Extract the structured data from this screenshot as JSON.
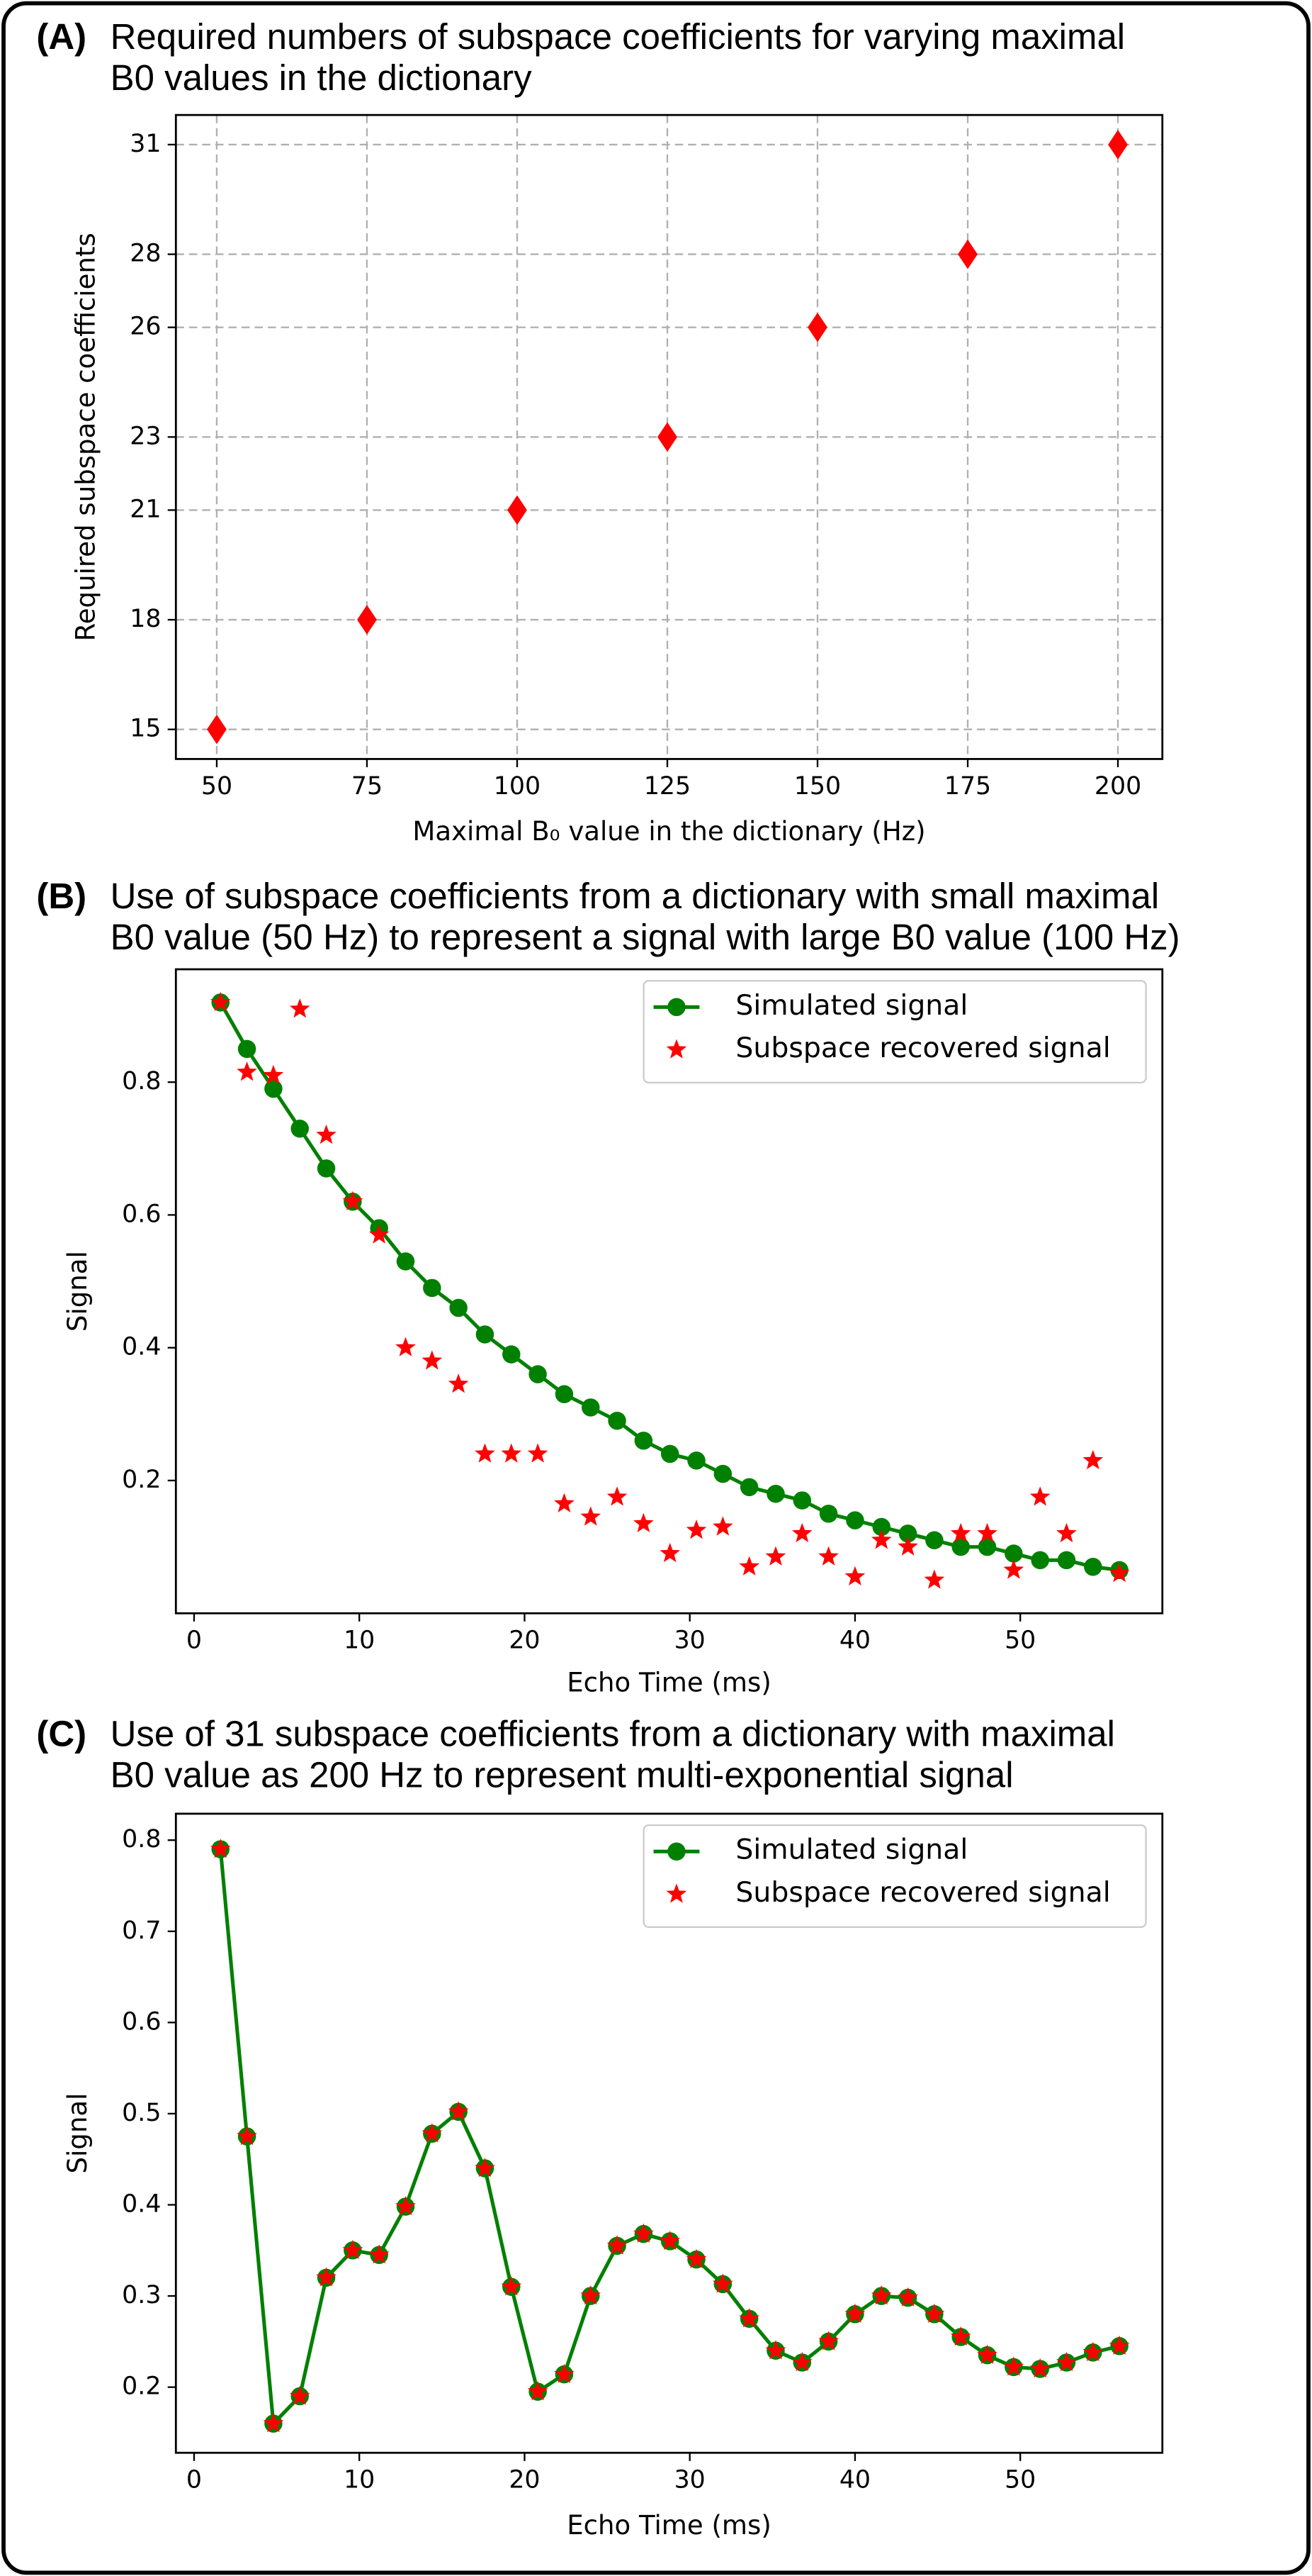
{
  "chart_data": [
    {
      "type": "scatter",
      "label": "(A)",
      "title": [
        "Required numbers of subspace coefficients for varying maximal",
        "B0 values in the dictionary"
      ],
      "xlabel": "Maximal B₀ value in the dictionary (Hz)",
      "ylabel": "Required subspace coefficients",
      "x": [
        50,
        75,
        100,
        125,
        150,
        175,
        200
      ],
      "values": [
        15,
        18,
        21,
        23,
        26,
        28,
        31
      ],
      "color": "#ff0000",
      "marker": "d",
      "xlim": [
        43.2,
        207.4
      ],
      "ylim": [
        14.19,
        31.81
      ],
      "xticks": [
        50,
        75,
        100,
        125,
        150,
        175,
        200
      ],
      "yticks": [
        15,
        18,
        21,
        23,
        26,
        28,
        31
      ],
      "grid": true
    },
    {
      "type": "line",
      "label": "(B)",
      "title": [
        "Use of subspace coefficients from a dictionary with small maximal",
        "B0 value (50 Hz) to represent a signal with large B0 value (100 Hz)"
      ],
      "xlabel": "Echo Time (ms)",
      "ylabel": "Signal",
      "x": [
        1.6,
        3.2,
        4.8,
        6.4,
        8.0,
        9.6,
        11.2,
        12.8,
        14.4,
        16.0,
        17.6,
        19.2,
        20.8,
        22.4,
        24.0,
        25.6,
        27.2,
        28.8,
        30.4,
        32.0,
        33.6,
        35.2,
        36.8,
        38.4,
        40.0,
        41.6,
        43.2,
        44.8,
        46.4,
        48.0,
        49.6,
        51.2,
        52.8,
        54.4,
        56.0
      ],
      "series": [
        {
          "name": "Simulated signal",
          "color": "#008000",
          "marker": "o",
          "linestyle": "solid",
          "values": [
            0.92,
            0.85,
            0.79,
            0.73,
            0.67,
            0.62,
            0.58,
            0.53,
            0.49,
            0.46,
            0.42,
            0.39,
            0.36,
            0.33,
            0.31,
            0.29,
            0.26,
            0.24,
            0.23,
            0.21,
            0.19,
            0.18,
            0.17,
            0.15,
            0.14,
            0.13,
            0.12,
            0.11,
            0.1,
            0.1,
            0.09,
            0.08,
            0.08,
            0.07,
            0.065
          ]
        },
        {
          "name": "Subspace recovered signal",
          "color": "#ff0000",
          "marker": "*",
          "linestyle": "none",
          "values": [
            0.92,
            0.815,
            0.81,
            0.91,
            0.72,
            0.62,
            0.57,
            0.4,
            0.38,
            0.345,
            0.24,
            0.24,
            0.24,
            0.165,
            0.145,
            0.175,
            0.135,
            0.09,
            0.125,
            0.13,
            0.07,
            0.085,
            0.12,
            0.085,
            0.055,
            0.11,
            0.1,
            0.05,
            0.12,
            0.12,
            0.065,
            0.175,
            0.12,
            0.23,
            0.06
          ]
        }
      ],
      "xlim": [
        -1.1,
        58.6
      ],
      "ylim": [
        0.0,
        0.97
      ],
      "xticks": [
        0,
        10,
        20,
        30,
        40,
        50
      ],
      "yticks": [
        0.2,
        0.4,
        0.6,
        0.8
      ],
      "grid": false,
      "legend": "upper right"
    },
    {
      "type": "line",
      "label": "(C)",
      "title": [
        "Use of 31 subspace coefficients from a dictionary with maximal",
        "B0 value as 200 Hz to represent multi-exponential signal"
      ],
      "xlabel": "Echo Time (ms)",
      "ylabel": "Signal",
      "x": [
        1.6,
        3.2,
        4.8,
        6.4,
        8.0,
        9.6,
        11.2,
        12.8,
        14.4,
        16.0,
        17.6,
        19.2,
        20.8,
        22.4,
        24.0,
        25.6,
        27.2,
        28.8,
        30.4,
        32.0,
        33.6,
        35.2,
        36.8,
        38.4,
        40.0,
        41.6,
        43.2,
        44.8,
        46.4,
        48.0,
        49.6,
        51.2,
        52.8,
        54.4,
        56.0
      ],
      "series": [
        {
          "name": "Simulated signal",
          "color": "#008000",
          "marker": "o",
          "linestyle": "solid",
          "values": [
            0.79,
            0.475,
            0.16,
            0.19,
            0.32,
            0.35,
            0.345,
            0.398,
            0.478,
            0.502,
            0.44,
            0.31,
            0.195,
            0.214,
            0.3,
            0.355,
            0.368,
            0.36,
            0.34,
            0.313,
            0.275,
            0.24,
            0.227,
            0.25,
            0.28,
            0.3,
            0.298,
            0.28,
            0.255,
            0.235,
            0.222,
            0.22,
            0.227,
            0.238,
            0.245
          ]
        },
        {
          "name": "Subspace recovered signal",
          "color": "#ff0000",
          "marker": "*",
          "linestyle": "none",
          "values": [
            0.79,
            0.475,
            0.16,
            0.19,
            0.32,
            0.35,
            0.345,
            0.398,
            0.478,
            0.502,
            0.44,
            0.31,
            0.195,
            0.214,
            0.3,
            0.355,
            0.368,
            0.36,
            0.34,
            0.313,
            0.275,
            0.24,
            0.227,
            0.25,
            0.28,
            0.3,
            0.298,
            0.28,
            0.255,
            0.235,
            0.222,
            0.22,
            0.227,
            0.238,
            0.245
          ]
        }
      ],
      "xlim": [
        -1.1,
        58.6
      ],
      "ylim": [
        0.128,
        0.829
      ],
      "xticks": [
        0,
        10,
        20,
        30,
        40,
        50
      ],
      "yticks": [
        0.2,
        0.3,
        0.4,
        0.5,
        0.6,
        0.7,
        0.8
      ],
      "grid": false,
      "legend": "upper right"
    }
  ]
}
